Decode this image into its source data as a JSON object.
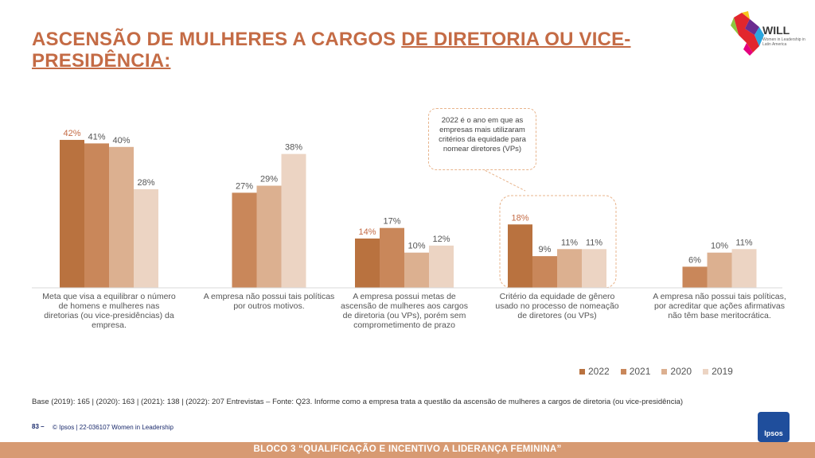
{
  "title": {
    "part1": "ASCENSÃO DE MULHERES A CARGOS ",
    "part2": "DE DIRETORIA OU VICE-PRESIDÊNCIA:"
  },
  "logo": {
    "name": "WILL",
    "subtitle": "Women in Leadership in Latin America"
  },
  "callout": {
    "text": "2022 é o ano em que as empresas mais utilizaram critérios da equidade para nomear diretores (VPs)"
  },
  "base_note": "Base (2019): 165 | (2020): 163  | (2021): 138 | (2022): 207 Entrevistas – Fonte: Q23. Informe como a empresa trata a questão da ascensão de mulheres a cargos de diretoria (ou vice-presidência)",
  "page_number": "83 –",
  "copyright": "© Ipsos | 22-036107 Women in Leadership",
  "brand": "Ipsos",
  "footer": "BLOCO 3 “QUALIFICAÇÃO  E INCENTIVO  A LIDERANÇA   FEMININA”",
  "colors": {
    "2022": "#b9723f",
    "2021": "#c9875a",
    "2020": "#dcb090",
    "2019": "#ecd4c3",
    "highlight_label": "#c46b45",
    "label": "#555555"
  },
  "chart_data": {
    "type": "bar",
    "title": "",
    "xlabel": "",
    "ylabel": "",
    "ylim": [
      0,
      45
    ],
    "categories": [
      "Meta que visa a equilibrar o número de homens e mulheres nas diretorias (ou vice-presidências) da empresa.",
      "A empresa não possui tais políticas por outros motivos.",
      "A empresa possui metas de ascensão de mulheres aos cargos de diretoria (ou VPs), porém sem comprometimento de prazo",
      "Critério da equidade de gênero usado no processo de nomeação de diretores (ou VPs)",
      "A empresa não possui tais políticas, por acreditar que ações afirmativas não têm base meritocrática."
    ],
    "series": [
      {
        "name": "2022",
        "values": [
          42,
          null,
          14,
          18,
          null
        ],
        "labels": [
          "42%",
          "",
          "14%",
          "18%",
          ""
        ]
      },
      {
        "name": "2021",
        "values": [
          41,
          27,
          17,
          9,
          6
        ],
        "labels": [
          "41%",
          "27%",
          "17%",
          "9%",
          "6%"
        ]
      },
      {
        "name": "2020",
        "values": [
          40,
          29,
          10,
          11,
          10
        ],
        "labels": [
          "40%",
          "29%",
          "10%",
          "11%",
          "10%"
        ]
      },
      {
        "name": "2019",
        "values": [
          28,
          38,
          12,
          11,
          11
        ],
        "labels": [
          "28%",
          "38%",
          "12%",
          "11%",
          "11%"
        ]
      }
    ],
    "legend_position": "bottom-right",
    "grid": false
  }
}
